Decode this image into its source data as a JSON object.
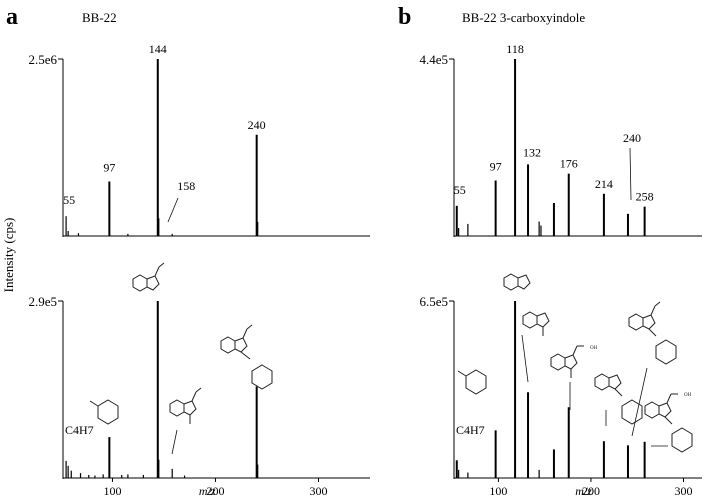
{
  "figure": {
    "ylabel": "Intensity (cps)"
  },
  "chart_data": [
    {
      "panel_letter": "a",
      "title": "BB-22",
      "type": "bar",
      "xlim": [
        52,
        350
      ],
      "xticks": [],
      "ylim": [
        0,
        2.5
      ],
      "ymax_label": "2.5e6",
      "peaks": [
        {
          "x": 55,
          "y": 0.28
        },
        {
          "x": 57,
          "y": 0.07
        },
        {
          "x": 67,
          "y": 0.04
        },
        {
          "x": 97,
          "y": 0.77
        },
        {
          "x": 115,
          "y": 0.03
        },
        {
          "x": 144,
          "y": 2.5
        },
        {
          "x": 145,
          "y": 0.25
        },
        {
          "x": 158,
          "y": 0.03
        },
        {
          "x": 240,
          "y": 1.43
        },
        {
          "x": 241,
          "y": 0.2
        }
      ],
      "labels": [
        {
          "text": "55",
          "x": 55,
          "y": 0.28
        },
        {
          "text": "97",
          "x": 97,
          "y": 0.77
        },
        {
          "text": "144",
          "x": 144,
          "y": 2.5
        },
        {
          "text": "158",
          "x": 158,
          "y": 0.03
        },
        {
          "text": "240",
          "x": 240,
          "y": 1.43
        }
      ]
    },
    {
      "panel_letter": "",
      "title": "",
      "type": "bar",
      "xlim": [
        52,
        350
      ],
      "xticks": [
        100,
        200,
        300
      ],
      "xlabel": "m/z",
      "ylim": [
        0,
        2.9
      ],
      "ymax_label": "2.9e5",
      "peaks": [
        {
          "x": 55,
          "y": 0.28
        },
        {
          "x": 57,
          "y": 0.2
        },
        {
          "x": 60,
          "y": 0.12
        },
        {
          "x": 69,
          "y": 0.08
        },
        {
          "x": 77,
          "y": 0.05
        },
        {
          "x": 83,
          "y": 0.04
        },
        {
          "x": 91,
          "y": 0.06
        },
        {
          "x": 97,
          "y": 0.67
        },
        {
          "x": 109,
          "y": 0.05
        },
        {
          "x": 115,
          "y": 0.06
        },
        {
          "x": 130,
          "y": 0.05
        },
        {
          "x": 144,
          "y": 2.9
        },
        {
          "x": 145,
          "y": 0.3
        },
        {
          "x": 158,
          "y": 0.15
        },
        {
          "x": 170,
          "y": 0.04
        },
        {
          "x": 240,
          "y": 1.5
        },
        {
          "x": 241,
          "y": 0.22
        }
      ],
      "labels": [
        {
          "text": "C4H7",
          "x": 55,
          "y": 0.28
        }
      ]
    },
    {
      "panel_letter": "b",
      "title": "BB-22 3-carboxyindole",
      "type": "bar",
      "xlim": [
        52,
        320
      ],
      "xticks": [],
      "ylim": [
        0,
        4.4
      ],
      "ymax_label": "4.4e5",
      "peaks": [
        {
          "x": 55,
          "y": 0.75
        },
        {
          "x": 57,
          "y": 0.2
        },
        {
          "x": 67,
          "y": 0.3
        },
        {
          "x": 97,
          "y": 1.38
        },
        {
          "x": 118,
          "y": 4.4
        },
        {
          "x": 132,
          "y": 1.78
        },
        {
          "x": 144,
          "y": 0.36
        },
        {
          "x": 146,
          "y": 0.26
        },
        {
          "x": 160,
          "y": 0.82
        },
        {
          "x": 176,
          "y": 1.55
        },
        {
          "x": 214,
          "y": 1.05
        },
        {
          "x": 240,
          "y": 0.55
        },
        {
          "x": 258,
          "y": 0.73
        }
      ],
      "labels": [
        {
          "text": "55",
          "x": 55,
          "y": 0.75
        },
        {
          "text": "97",
          "x": 97,
          "y": 1.38
        },
        {
          "text": "118",
          "x": 118,
          "y": 4.4
        },
        {
          "text": "132",
          "x": 132,
          "y": 1.78
        },
        {
          "text": "176",
          "x": 176,
          "y": 1.55
        },
        {
          "text": "214",
          "x": 214,
          "y": 1.05
        },
        {
          "text": "240",
          "x": 240,
          "y": 0.55
        },
        {
          "text": "258",
          "x": 258,
          "y": 0.73
        }
      ]
    },
    {
      "panel_letter": "",
      "title": "",
      "type": "bar",
      "xlim": [
        52,
        320
      ],
      "xticks": [
        100,
        200,
        300
      ],
      "xlabel": "m/z",
      "ylim": [
        0,
        6.5
      ],
      "ymax_label": "6.5e5",
      "peaks": [
        {
          "x": 55,
          "y": 0.65
        },
        {
          "x": 57,
          "y": 0.3
        },
        {
          "x": 67,
          "y": 0.2
        },
        {
          "x": 97,
          "y": 1.75
        },
        {
          "x": 118,
          "y": 6.5
        },
        {
          "x": 132,
          "y": 3.15
        },
        {
          "x": 144,
          "y": 0.3
        },
        {
          "x": 160,
          "y": 1.05
        },
        {
          "x": 176,
          "y": 2.6
        },
        {
          "x": 214,
          "y": 1.35
        },
        {
          "x": 240,
          "y": 1.2
        },
        {
          "x": 258,
          "y": 1.33
        }
      ],
      "labels": [
        {
          "text": "C4H7",
          "x": 55,
          "y": 0.65
        }
      ]
    }
  ]
}
